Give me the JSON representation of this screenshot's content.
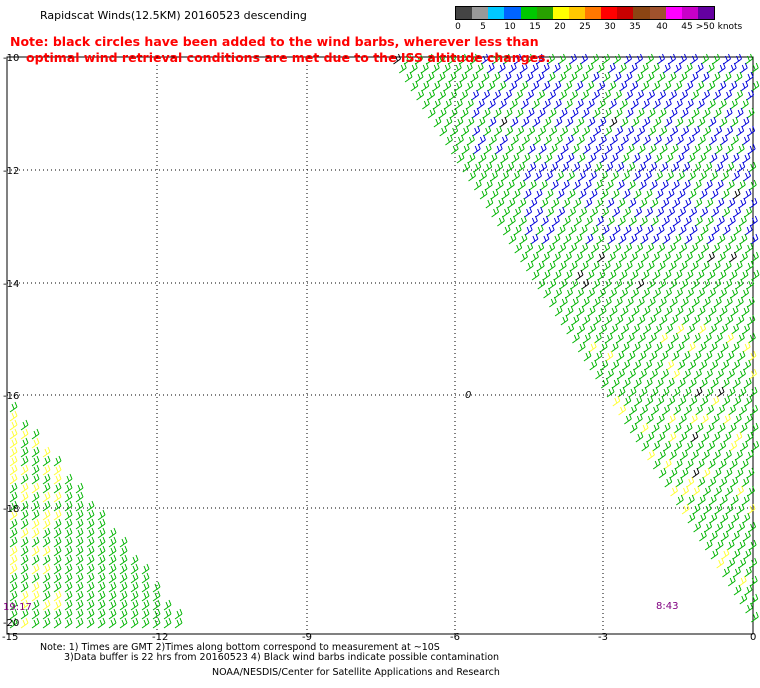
{
  "header": {
    "title": "Rapidscat Winds(12.5KM) 20160523 descending",
    "note_line1": "Note: black circles have been added to the wind barbs, wherever less than",
    "note_line2": "optimal wind retrieval conditions are met due to the ISS altitude changes."
  },
  "legend": {
    "unit": ">50 knots",
    "ticks": [
      "0",
      "5",
      "10",
      "15",
      "20",
      "25",
      "30",
      "35",
      "40",
      "45",
      ">50 knots"
    ],
    "colors": [
      "#444444",
      "#999999",
      "#00c8ff",
      "#0064ff",
      "#00c800",
      "#28a000",
      "#ffff00",
      "#ffc800",
      "#ff7800",
      "#ff0000",
      "#c80000",
      "#8b4513",
      "#a0522d",
      "#ff00ff",
      "#c800c8",
      "#6400a0"
    ]
  },
  "axes": {
    "lat_labels": [
      "-10",
      "-12",
      "-14",
      "-16",
      "-18",
      "-20"
    ],
    "lon_labels": [
      "-15",
      "-12",
      "-9",
      "-6",
      "-3",
      "0"
    ]
  },
  "map": {
    "marker": "0",
    "time_left": "19:17",
    "time_right": "8:43",
    "barb_colors": {
      "green": "#00b400",
      "blue": "#0000dc",
      "yellow": "#ffff32",
      "black": "#000000"
    }
  },
  "footer": {
    "line1": "Note: 1) Times are GMT 2)Times along bottom correspond to measurement at ~10S",
    "line2": "3)Data buffer is 22 hrs from 20160523 4) Black wind barbs indicate possible contamination",
    "line3": "NOAA/NESDIS/Center for Satellite Applications and Research"
  }
}
